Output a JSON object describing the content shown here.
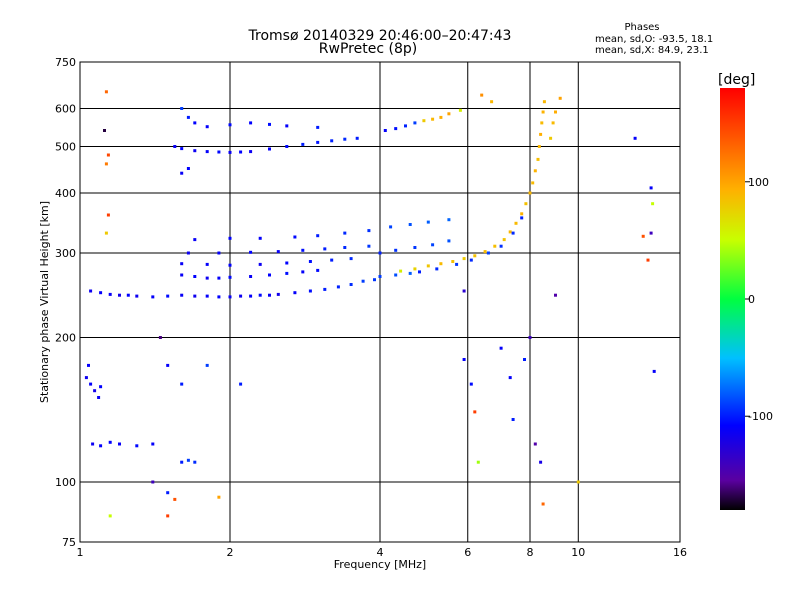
{
  "chart_data": {
    "type": "scatter",
    "title": "Tromsø 20140329 20:46:00–20:47:43",
    "subtitle": "RwPretec (8p)",
    "xlabel": "Frequency [MHz]",
    "ylabel": "Stationary phase Virtual Height [km]",
    "x_scale": "log",
    "y_scale": "log",
    "xlim": [
      1,
      16
    ],
    "ylim": [
      75,
      750
    ],
    "x_ticks": [
      1,
      2,
      4,
      6,
      8,
      10,
      16
    ],
    "y_ticks": [
      75,
      100,
      200,
      300,
      400,
      500,
      600,
      750
    ],
    "grid": true,
    "stats": {
      "heading": "Phases",
      "line1": "mean, sd,O: -93.5, 18.1",
      "line2": "mean, sd,X:  84.9, 23.1"
    },
    "colorbar": {
      "label": "[deg]",
      "min": -180,
      "max": 180,
      "ticks": [
        100,
        0,
        -100
      ]
    },
    "series": [
      {
        "values": [
          {
            "x": 1.05,
            "y": 250,
            "c": -115
          },
          {
            "x": 1.1,
            "y": 248,
            "c": -110
          },
          {
            "x": 1.15,
            "y": 246,
            "c": -112
          },
          {
            "x": 1.2,
            "y": 245,
            "c": -118
          },
          {
            "x": 1.25,
            "y": 245,
            "c": -108
          },
          {
            "x": 1.3,
            "y": 244,
            "c": -115
          },
          {
            "x": 1.4,
            "y": 243,
            "c": -110
          },
          {
            "x": 1.5,
            "y": 244,
            "c": -105
          },
          {
            "x": 1.6,
            "y": 245,
            "c": -112
          },
          {
            "x": 1.7,
            "y": 244,
            "c": -116
          },
          {
            "x": 1.8,
            "y": 244,
            "c": -110
          },
          {
            "x": 1.9,
            "y": 243,
            "c": -108
          },
          {
            "x": 2.0,
            "y": 243,
            "c": -112
          },
          {
            "x": 2.1,
            "y": 244,
            "c": -115
          },
          {
            "x": 2.2,
            "y": 244,
            "c": -110
          },
          {
            "x": 2.3,
            "y": 245,
            "c": -106
          },
          {
            "x": 2.4,
            "y": 245,
            "c": -112
          },
          {
            "x": 2.5,
            "y": 246,
            "c": -118
          },
          {
            "x": 2.7,
            "y": 248,
            "c": -110
          },
          {
            "x": 2.9,
            "y": 250,
            "c": -104
          },
          {
            "x": 3.1,
            "y": 252,
            "c": -100
          },
          {
            "x": 3.3,
            "y": 255,
            "c": -98
          },
          {
            "x": 3.5,
            "y": 258,
            "c": -95
          },
          {
            "x": 3.7,
            "y": 262,
            "c": -90
          },
          {
            "x": 3.9,
            "y": 264,
            "c": -92
          },
          {
            "x": 1.6,
            "y": 270,
            "c": -112
          },
          {
            "x": 1.7,
            "y": 268,
            "c": -108
          },
          {
            "x": 1.8,
            "y": 266,
            "c": -114
          },
          {
            "x": 1.9,
            "y": 266,
            "c": -110
          },
          {
            "x": 2.0,
            "y": 267,
            "c": -106
          },
          {
            "x": 2.2,
            "y": 268,
            "c": -112
          },
          {
            "x": 2.4,
            "y": 270,
            "c": -108
          },
          {
            "x": 2.6,
            "y": 272,
            "c": -104
          },
          {
            "x": 2.8,
            "y": 274,
            "c": -110
          },
          {
            "x": 3.0,
            "y": 276,
            "c": -106
          },
          {
            "x": 1.6,
            "y": 285,
            "c": -112
          },
          {
            "x": 1.8,
            "y": 284,
            "c": -110
          },
          {
            "x": 2.0,
            "y": 283,
            "c": -108
          },
          {
            "x": 2.3,
            "y": 284,
            "c": -114
          },
          {
            "x": 2.6,
            "y": 286,
            "c": -108
          },
          {
            "x": 2.9,
            "y": 288,
            "c": -104
          },
          {
            "x": 3.2,
            "y": 290,
            "c": -100
          },
          {
            "x": 3.5,
            "y": 292,
            "c": -96
          },
          {
            "x": 1.65,
            "y": 300,
            "c": -114
          },
          {
            "x": 1.9,
            "y": 300,
            "c": -110
          },
          {
            "x": 2.2,
            "y": 301,
            "c": -108
          },
          {
            "x": 2.5,
            "y": 302,
            "c": -112
          },
          {
            "x": 2.8,
            "y": 304,
            "c": -104
          },
          {
            "x": 3.1,
            "y": 306,
            "c": -100
          },
          {
            "x": 3.4,
            "y": 308,
            "c": -96
          },
          {
            "x": 3.8,
            "y": 310,
            "c": -92
          },
          {
            "x": 1.7,
            "y": 320,
            "c": -112
          },
          {
            "x": 2.0,
            "y": 322,
            "c": -108
          },
          {
            "x": 2.3,
            "y": 322,
            "c": -110
          },
          {
            "x": 2.7,
            "y": 324,
            "c": -106
          },
          {
            "x": 3.0,
            "y": 326,
            "c": -100
          },
          {
            "x": 3.4,
            "y": 330,
            "c": -96
          },
          {
            "x": 3.8,
            "y": 334,
            "c": -94
          },
          {
            "x": 4.2,
            "y": 340,
            "c": -88
          },
          {
            "x": 4.6,
            "y": 344,
            "c": -84
          },
          {
            "x": 5.0,
            "y": 348,
            "c": -80
          },
          {
            "x": 5.5,
            "y": 352,
            "c": -78
          },
          {
            "x": 4.0,
            "y": 300,
            "c": -98
          },
          {
            "x": 4.3,
            "y": 304,
            "c": -94
          },
          {
            "x": 4.7,
            "y": 308,
            "c": -92
          },
          {
            "x": 5.1,
            "y": 312,
            "c": -88
          },
          {
            "x": 5.5,
            "y": 318,
            "c": -84
          },
          {
            "x": 4.0,
            "y": 268,
            "c": -90
          },
          {
            "x": 4.3,
            "y": 270,
            "c": -85
          },
          {
            "x": 4.6,
            "y": 272,
            "c": -80
          },
          {
            "x": 1.55,
            "y": 500,
            "c": -112
          },
          {
            "x": 1.6,
            "y": 495,
            "c": -108
          },
          {
            "x": 1.7,
            "y": 490,
            "c": -114
          },
          {
            "x": 1.8,
            "y": 488,
            "c": -110
          },
          {
            "x": 1.9,
            "y": 487,
            "c": -106
          },
          {
            "x": 2.0,
            "y": 486,
            "c": -112
          },
          {
            "x": 2.1,
            "y": 487,
            "c": -108
          },
          {
            "x": 2.2,
            "y": 488,
            "c": -114
          },
          {
            "x": 2.4,
            "y": 494,
            "c": -110
          },
          {
            "x": 2.6,
            "y": 500,
            "c": -106
          },
          {
            "x": 2.8,
            "y": 505,
            "c": -100
          },
          {
            "x": 3.0,
            "y": 510,
            "c": -102
          },
          {
            "x": 3.2,
            "y": 514,
            "c": -98
          },
          {
            "x": 3.4,
            "y": 518,
            "c": -96
          },
          {
            "x": 3.6,
            "y": 520,
            "c": -100
          },
          {
            "x": 1.8,
            "y": 550,
            "c": -110
          },
          {
            "x": 2.0,
            "y": 555,
            "c": -106
          },
          {
            "x": 2.2,
            "y": 560,
            "c": -108
          },
          {
            "x": 2.4,
            "y": 556,
            "c": -104
          },
          {
            "x": 2.6,
            "y": 552,
            "c": -110
          },
          {
            "x": 3.0,
            "y": 548,
            "c": -100
          },
          {
            "x": 1.6,
            "y": 600,
            "c": -90
          },
          {
            "x": 1.65,
            "y": 575,
            "c": -100
          },
          {
            "x": 1.7,
            "y": 560,
            "c": -108
          },
          {
            "x": 1.6,
            "y": 440,
            "c": -112
          },
          {
            "x": 1.65,
            "y": 450,
            "c": -108
          },
          {
            "x": 4.1,
            "y": 540,
            "c": -110
          },
          {
            "x": 4.3,
            "y": 545,
            "c": -104
          },
          {
            "x": 4.5,
            "y": 552,
            "c": -98
          },
          {
            "x": 4.7,
            "y": 560,
            "c": -90
          },
          {
            "x": 4.9,
            "y": 566,
            "c": 80
          },
          {
            "x": 5.1,
            "y": 570,
            "c": 90
          },
          {
            "x": 5.3,
            "y": 575,
            "c": 95
          },
          {
            "x": 5.5,
            "y": 585,
            "c": 100
          },
          {
            "x": 5.8,
            "y": 595,
            "c": 60
          },
          {
            "x": 4.4,
            "y": 275,
            "c": 60
          },
          {
            "x": 4.7,
            "y": 278,
            "c": 75
          },
          {
            "x": 5.0,
            "y": 282,
            "c": 82
          },
          {
            "x": 5.3,
            "y": 285,
            "c": 88
          },
          {
            "x": 5.6,
            "y": 288,
            "c": 85
          },
          {
            "x": 5.9,
            "y": 292,
            "c": 80
          },
          {
            "x": 6.2,
            "y": 296,
            "c": 85
          },
          {
            "x": 6.5,
            "y": 302,
            "c": 88
          },
          {
            "x": 6.8,
            "y": 310,
            "c": 86
          },
          {
            "x": 7.1,
            "y": 320,
            "c": 84
          },
          {
            "x": 7.3,
            "y": 332,
            "c": 90
          },
          {
            "x": 7.5,
            "y": 346,
            "c": 88
          },
          {
            "x": 7.7,
            "y": 362,
            "c": 92
          },
          {
            "x": 7.85,
            "y": 380,
            "c": 85
          },
          {
            "x": 8.0,
            "y": 400,
            "c": 90
          },
          {
            "x": 8.1,
            "y": 420,
            "c": 88
          },
          {
            "x": 8.2,
            "y": 445,
            "c": 92
          },
          {
            "x": 8.3,
            "y": 470,
            "c": 86
          },
          {
            "x": 8.35,
            "y": 500,
            "c": 90
          },
          {
            "x": 8.4,
            "y": 530,
            "c": 94
          },
          {
            "x": 8.45,
            "y": 560,
            "c": 88
          },
          {
            "x": 8.5,
            "y": 590,
            "c": 92
          },
          {
            "x": 8.55,
            "y": 620,
            "c": 90
          },
          {
            "x": 4.8,
            "y": 274,
            "c": -100
          },
          {
            "x": 5.2,
            "y": 278,
            "c": -96
          },
          {
            "x": 5.7,
            "y": 284,
            "c": -92
          },
          {
            "x": 6.1,
            "y": 290,
            "c": -96
          },
          {
            "x": 6.6,
            "y": 300,
            "c": -90
          },
          {
            "x": 7.0,
            "y": 310,
            "c": -94
          },
          {
            "x": 7.4,
            "y": 330,
            "c": -96
          },
          {
            "x": 7.7,
            "y": 355,
            "c": -98
          },
          {
            "x": 8.8,
            "y": 520,
            "c": 80
          },
          {
            "x": 8.9,
            "y": 560,
            "c": 88
          },
          {
            "x": 9.0,
            "y": 590,
            "c": 95
          },
          {
            "x": 9.2,
            "y": 630,
            "c": 100
          },
          {
            "x": 6.4,
            "y": 640,
            "c": 110
          },
          {
            "x": 6.7,
            "y": 620,
            "c": 90
          },
          {
            "x": 1.03,
            "y": 165,
            "c": -115
          },
          {
            "x": 1.05,
            "y": 160,
            "c": -110
          },
          {
            "x": 1.07,
            "y": 155,
            "c": -118
          },
          {
            "x": 1.09,
            "y": 150,
            "c": -112
          },
          {
            "x": 1.1,
            "y": 158,
            "c": -108
          },
          {
            "x": 1.04,
            "y": 175,
            "c": -110
          },
          {
            "x": 1.06,
            "y": 120,
            "c": -114
          },
          {
            "x": 1.1,
            "y": 119,
            "c": -110
          },
          {
            "x": 1.15,
            "y": 121,
            "c": -108
          },
          {
            "x": 1.2,
            "y": 120,
            "c": -112
          },
          {
            "x": 1.3,
            "y": 119,
            "c": -106
          },
          {
            "x": 1.4,
            "y": 120,
            "c": -110
          },
          {
            "x": 1.6,
            "y": 110,
            "c": -100
          },
          {
            "x": 1.65,
            "y": 111,
            "c": -90
          },
          {
            "x": 1.7,
            "y": 110,
            "c": -95
          },
          {
            "x": 1.13,
            "y": 650,
            "c": 130
          },
          {
            "x": 1.12,
            "y": 540,
            "c": -170
          },
          {
            "x": 1.14,
            "y": 480,
            "c": 145
          },
          {
            "x": 1.13,
            "y": 460,
            "c": 120
          },
          {
            "x": 1.14,
            "y": 360,
            "c": 150
          },
          {
            "x": 1.13,
            "y": 330,
            "c": 80
          },
          {
            "x": 1.4,
            "y": 100,
            "c": -140
          },
          {
            "x": 1.5,
            "y": 95,
            "c": -100
          },
          {
            "x": 1.55,
            "y": 92,
            "c": 140
          },
          {
            "x": 1.5,
            "y": 85,
            "c": 150
          },
          {
            "x": 1.15,
            "y": 85,
            "c": 50
          },
          {
            "x": 1.9,
            "y": 93,
            "c": 100
          },
          {
            "x": 1.45,
            "y": 200,
            "c": -160
          },
          {
            "x": 1.5,
            "y": 175,
            "c": -110
          },
          {
            "x": 1.6,
            "y": 160,
            "c": -100
          },
          {
            "x": 1.8,
            "y": 175,
            "c": -90
          },
          {
            "x": 2.1,
            "y": 160,
            "c": -100
          },
          {
            "x": 5.9,
            "y": 180,
            "c": -110
          },
          {
            "x": 6.1,
            "y": 160,
            "c": -105
          },
          {
            "x": 6.2,
            "y": 140,
            "c": 150
          },
          {
            "x": 6.3,
            "y": 110,
            "c": 40
          },
          {
            "x": 7.0,
            "y": 190,
            "c": -110
          },
          {
            "x": 7.3,
            "y": 165,
            "c": -110
          },
          {
            "x": 7.8,
            "y": 180,
            "c": -100
          },
          {
            "x": 8.2,
            "y": 120,
            "c": -150
          },
          {
            "x": 8.4,
            "y": 110,
            "c": -120
          },
          {
            "x": 8.5,
            "y": 90,
            "c": 130
          },
          {
            "x": 13.0,
            "y": 520,
            "c": -110
          },
          {
            "x": 14.0,
            "y": 410,
            "c": -110
          },
          {
            "x": 14.1,
            "y": 380,
            "c": 50
          },
          {
            "x": 14.0,
            "y": 330,
            "c": -140
          },
          {
            "x": 13.8,
            "y": 290,
            "c": 150
          },
          {
            "x": 14.2,
            "y": 170,
            "c": -110
          },
          {
            "x": 13.5,
            "y": 325,
            "c": 140
          },
          {
            "x": 9.0,
            "y": 245,
            "c": -150
          },
          {
            "x": 8.0,
            "y": 200,
            "c": -140
          },
          {
            "x": 5.9,
            "y": 250,
            "c": -130
          },
          {
            "x": 7.4,
            "y": 135,
            "c": -100
          },
          {
            "x": 10.0,
            "y": 100,
            "c": 80
          }
        ]
      }
    ]
  }
}
